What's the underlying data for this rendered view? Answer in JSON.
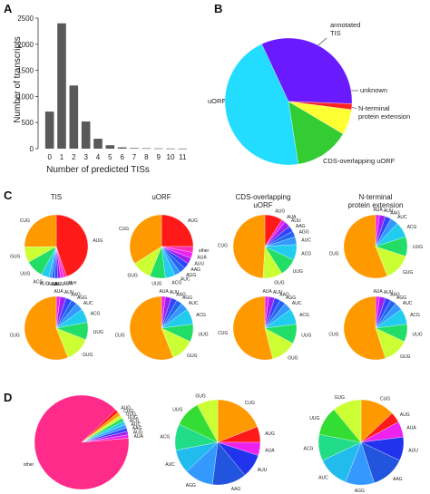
{
  "panels": {
    "a": "A",
    "b": "B",
    "c": "C",
    "d": "D"
  },
  "chart_data": [
    {
      "panel": "A",
      "type": "bar",
      "xlabel": "Number of predicted TISs",
      "ylabel": "Number of transcripts",
      "categories": [
        "0",
        "1",
        "2",
        "3",
        "4",
        "5",
        "6",
        "7",
        "8",
        "9",
        "10",
        "11"
      ],
      "values": [
        710,
        2400,
        1210,
        520,
        190,
        65,
        25,
        12,
        8,
        5,
        3,
        2
      ],
      "ylim": [
        0,
        2500
      ],
      "yticks": [
        "0",
        "500",
        "1000",
        "1500",
        "2000",
        "2500"
      ],
      "color": "#595959",
      "grid": false
    },
    {
      "panel": "B",
      "type": "pie",
      "slices": [
        {
          "label": "annotated TIS",
          "value": 32.5,
          "color": "#6a1aff"
        },
        {
          "label": "unknown",
          "value": 1.5,
          "color": "#ff2222"
        },
        {
          "label": "N-terminal protein extension",
          "value": 6.5,
          "color": "#ffff33"
        },
        {
          "label": "CDS-overlapping uORF",
          "value": 14.0,
          "color": "#33cc33"
        },
        {
          "label": "uORF",
          "value": 45.5,
          "color": "#22ddff"
        }
      ]
    },
    {
      "panel": "C",
      "type": "pie",
      "column_headers": [
        "TIS",
        "uORF",
        "CDS-overlapping uORF",
        "N-terminal protein extension"
      ],
      "rows": [
        [
          {
            "slices": [
              {
                "label": "AUG",
                "value": 44.5,
                "color": "#ff1a1a"
              },
              {
                "label": "other",
                "value": 1.5,
                "color": "#ff2bb5"
              },
              {
                "label": "AUA",
                "value": 1.5,
                "color": "#ee22ee"
              },
              {
                "label": "AUU",
                "value": 1.5,
                "color": "#a020f0"
              },
              {
                "label": "AAG",
                "value": 1.5,
                "color": "#3344ff"
              },
              {
                "label": "AGG",
                "value": 1.5,
                "color": "#2266ee"
              },
              {
                "label": "AUC",
                "value": 1.5,
                "color": "#3399ff"
              },
              {
                "label": "ACG",
                "value": 4,
                "color": "#22ccee"
              },
              {
                "label": "UUG",
                "value": 9,
                "color": "#22dd66"
              },
              {
                "label": "GUG",
                "value": 8,
                "color": "#ccff33"
              },
              {
                "label": "CUG",
                "value": 25,
                "color": "#ff9900"
              }
            ]
          },
          {
            "slices": [
              {
                "label": "AUG",
                "value": 25,
                "color": "#ff1a1a"
              },
              {
                "label": "other",
                "value": 3,
                "color": "#ff2bb5"
              },
              {
                "label": "AUA",
                "value": 3,
                "color": "#ee22ee"
              },
              {
                "label": "AUU",
                "value": 3,
                "color": "#a020f0"
              },
              {
                "label": "AAG",
                "value": 3,
                "color": "#3344ff"
              },
              {
                "label": "AGG",
                "value": 3,
                "color": "#2266ee"
              },
              {
                "label": "AUC",
                "value": 3,
                "color": "#3399ff"
              },
              {
                "label": "ACG",
                "value": 5,
                "color": "#22ccee"
              },
              {
                "label": "UUG",
                "value": 8,
                "color": "#22dd66"
              },
              {
                "label": "GUG",
                "value": 10,
                "color": "#ccff33"
              },
              {
                "label": "CUG",
                "value": 34,
                "color": "#ff9900"
              }
            ]
          },
          {
            "slices": [
              {
                "label": "AUG",
                "value": 9,
                "color": "#ff1a1a"
              },
              {
                "label": "AUA",
                "value": 2,
                "color": "#ee22ee"
              },
              {
                "label": "AUU",
                "value": 3,
                "color": "#a020f0"
              },
              {
                "label": "AAG",
                "value": 3,
                "color": "#3344ff"
              },
              {
                "label": "AGG",
                "value": 3,
                "color": "#2266ee"
              },
              {
                "label": "AUC",
                "value": 4,
                "color": "#3399ff"
              },
              {
                "label": "ACG",
                "value": 8,
                "color": "#22ccee"
              },
              {
                "label": "UUG",
                "value": 9,
                "color": "#22dd66"
              },
              {
                "label": "GUG",
                "value": 10,
                "color": "#ccff33"
              },
              {
                "label": "CUG",
                "value": 49,
                "color": "#ff9900"
              }
            ]
          },
          {
            "slices": [
              {
                "label": "AUA",
                "value": 2,
                "color": "#ee22ee"
              },
              {
                "label": "AUU",
                "value": 3,
                "color": "#a020f0"
              },
              {
                "label": "AAG",
                "value": 3,
                "color": "#3344ff"
              },
              {
                "label": "AUC",
                "value": 4,
                "color": "#3399ff"
              },
              {
                "label": "ACG",
                "value": 8,
                "color": "#22ccee"
              },
              {
                "label": "UUG",
                "value": 10,
                "color": "#22dd66"
              },
              {
                "label": "GUG",
                "value": 14,
                "color": "#ccff33"
              },
              {
                "label": "CUG",
                "value": 56,
                "color": "#ff9900"
              }
            ]
          }
        ],
        [
          {
            "slices": [
              {
                "label": "AUA",
                "value": 2,
                "color": "#ee22ee"
              },
              {
                "label": "AUU",
                "value": 3,
                "color": "#a020f0"
              },
              {
                "label": "AAG",
                "value": 3,
                "color": "#3344ff"
              },
              {
                "label": "AGG",
                "value": 3,
                "color": "#2266ee"
              },
              {
                "label": "AUC",
                "value": 4,
                "color": "#3399ff"
              },
              {
                "label": "ACG",
                "value": 7,
                "color": "#22ccee"
              },
              {
                "label": "UUG",
                "value": 9,
                "color": "#22dd66"
              },
              {
                "label": "GUG",
                "value": 13,
                "color": "#ccff33"
              },
              {
                "label": "CUG",
                "value": 56,
                "color": "#ff9900"
              }
            ]
          },
          {
            "slices": [
              {
                "label": "AUA",
                "value": 2,
                "color": "#ee22ee"
              },
              {
                "label": "AUU",
                "value": 3,
                "color": "#a020f0"
              },
              {
                "label": "AAG",
                "value": 3,
                "color": "#3344ff"
              },
              {
                "label": "AGG",
                "value": 3,
                "color": "#2266ee"
              },
              {
                "label": "AUC",
                "value": 4,
                "color": "#3399ff"
              },
              {
                "label": "ACG",
                "value": 8,
                "color": "#22ccee"
              },
              {
                "label": "UUG",
                "value": 9,
                "color": "#22dd66"
              },
              {
                "label": "GUG",
                "value": 12,
                "color": "#ccff33"
              },
              {
                "label": "CUG",
                "value": 56,
                "color": "#ff9900"
              }
            ]
          },
          {
            "slices": [
              {
                "label": "AUA",
                "value": 2,
                "color": "#ee22ee"
              },
              {
                "label": "AUU",
                "value": 3,
                "color": "#a020f0"
              },
              {
                "label": "AAG",
                "value": 3,
                "color": "#3344ff"
              },
              {
                "label": "AGG",
                "value": 3,
                "color": "#2266ee"
              },
              {
                "label": "AUC",
                "value": 4,
                "color": "#3399ff"
              },
              {
                "label": "ACG",
                "value": 8,
                "color": "#22ccee"
              },
              {
                "label": "UUG",
                "value": 10,
                "color": "#22dd66"
              },
              {
                "label": "GUG",
                "value": 13,
                "color": "#ccff33"
              },
              {
                "label": "CUG",
                "value": 54,
                "color": "#ff9900"
              }
            ]
          },
          {
            "slices": [
              {
                "label": "AUA",
                "value": 2,
                "color": "#ee22ee"
              },
              {
                "label": "AUU",
                "value": 3,
                "color": "#a020f0"
              },
              {
                "label": "AAG",
                "value": 3,
                "color": "#3344ff"
              },
              {
                "label": "AGG",
                "value": 3,
                "color": "#2266ee"
              },
              {
                "label": "AUC",
                "value": 4,
                "color": "#3399ff"
              },
              {
                "label": "ACG",
                "value": 8,
                "color": "#22ccee"
              },
              {
                "label": "UUG",
                "value": 9,
                "color": "#22dd66"
              },
              {
                "label": "GUG",
                "value": 13,
                "color": "#ccff33"
              },
              {
                "label": "CUG",
                "value": 55,
                "color": "#ff9900"
              }
            ]
          }
        ]
      ]
    },
    {
      "panel": "D",
      "type": "pie",
      "pies": [
        {
          "slices": [
            {
              "label": "AUA",
              "value": 1.2,
              "color": "#ee22ee"
            },
            {
              "label": "AUU",
              "value": 1.2,
              "color": "#a020f0"
            },
            {
              "label": "AAG",
              "value": 1.2,
              "color": "#3344ff"
            },
            {
              "label": "AUC",
              "value": 1.2,
              "color": "#3399ff"
            },
            {
              "label": "ACG",
              "value": 1.2,
              "color": "#22ccee"
            },
            {
              "label": "UUG",
              "value": 1.2,
              "color": "#22dd66"
            },
            {
              "label": "GUG",
              "value": 1.2,
              "color": "#ccff33"
            },
            {
              "label": "CUG",
              "value": 1.2,
              "color": "#ff9900"
            },
            {
              "label": "AUG",
              "value": 1.2,
              "color": "#ff1a1a"
            },
            {
              "label": "other",
              "value": 89.2,
              "color": "#ff2b8a"
            }
          ]
        },
        {
          "slices": [
            {
              "label": "CUG",
              "value": 19,
              "color": "#ff9900"
            },
            {
              "label": "AUG",
              "value": 6,
              "color": "#ff1a1a"
            },
            {
              "label": "AUA",
              "value": 5,
              "color": "#ee22ee"
            },
            {
              "label": "AUU",
              "value": 9,
              "color": "#2233ee"
            },
            {
              "label": "AAG",
              "value": 13,
              "color": "#2255dd"
            },
            {
              "label": "AGG",
              "value": 11,
              "color": "#3399ff"
            },
            {
              "label": "AUC",
              "value": 9,
              "color": "#22bbee"
            },
            {
              "label": "ACG",
              "value": 10,
              "color": "#22dd88"
            },
            {
              "label": "UUG",
              "value": 10,
              "color": "#33dd33"
            },
            {
              "label": "GUG",
              "value": 8,
              "color": "#ccff33"
            }
          ]
        },
        {
          "slices": [
            {
              "label": "CUG",
              "value": 13,
              "color": "#ff9900"
            },
            {
              "label": "AUG",
              "value": 4,
              "color": "#ff1a1a"
            },
            {
              "label": "AUA",
              "value": 6,
              "color": "#ee22ee"
            },
            {
              "label": "AUU",
              "value": 9,
              "color": "#2233ee"
            },
            {
              "label": "AAG",
              "value": 13,
              "color": "#2255dd"
            },
            {
              "label": "AGG",
              "value": 11,
              "color": "#3399ff"
            },
            {
              "label": "AUC",
              "value": 12,
              "color": "#22bbee"
            },
            {
              "label": "ACG",
              "value": 10,
              "color": "#22dd88"
            },
            {
              "label": "UUG",
              "value": 11,
              "color": "#33dd33"
            },
            {
              "label": "GUG",
              "value": 11,
              "color": "#ccff33"
            }
          ]
        }
      ]
    }
  ]
}
